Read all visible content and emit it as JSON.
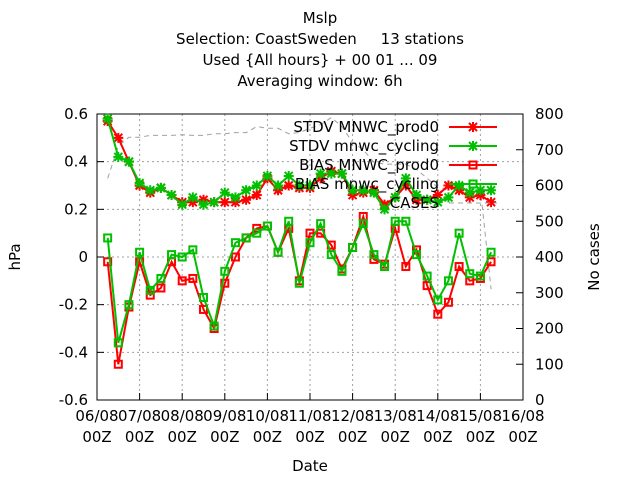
{
  "chart_data": {
    "type": "line",
    "title": [
      "Mslp",
      "Selection: CoastSweden     13 stations",
      "Used {All hours} + 00 01 ... 09",
      "Averaging window:  6h"
    ],
    "xlabel": "Date",
    "ylabel": "hPa",
    "y2label": "No cases",
    "x_ticks": [
      {
        "top": "06/08",
        "bottom": "00Z"
      },
      {
        "top": "07/08",
        "bottom": "00Z"
      },
      {
        "top": "08/08",
        "bottom": "00Z"
      },
      {
        "top": "09/08",
        "bottom": "00Z"
      },
      {
        "top": "10/08",
        "bottom": "00Z"
      },
      {
        "top": "11/08",
        "bottom": "00Z"
      },
      {
        "top": "12/08",
        "bottom": "00Z"
      },
      {
        "top": "13/08",
        "bottom": "00Z"
      },
      {
        "top": "14/08",
        "bottom": "00Z"
      },
      {
        "top": "15/08",
        "bottom": "00Z"
      },
      {
        "top": "16/08",
        "bottom": "00Z"
      }
    ],
    "xlim": [
      0,
      10
    ],
    "ylim": [
      -0.6,
      0.6
    ],
    "y_ticks": [
      "-0.6",
      "-0.4",
      "-0.2",
      "0",
      "0.2",
      "0.4",
      "0.6"
    ],
    "y2lim": [
      0,
      800
    ],
    "y2_ticks": [
      "0",
      "100",
      "200",
      "300",
      "400",
      "500",
      "600",
      "700",
      "800"
    ],
    "grid": true,
    "legend_position": "top-right",
    "x": [
      0.25,
      0.5,
      0.75,
      1.0,
      1.25,
      1.5,
      1.75,
      2.0,
      2.25,
      2.5,
      2.75,
      3.0,
      3.25,
      3.5,
      3.75,
      4.0,
      4.25,
      4.5,
      4.75,
      5.0,
      5.25,
      5.5,
      5.75,
      6.0,
      6.25,
      6.5,
      6.75,
      7.0,
      7.25,
      7.5,
      7.75,
      8.0,
      8.25,
      8.5,
      8.75,
      9.0,
      9.25
    ],
    "series": [
      {
        "name": "STDV MNWC_prod0",
        "axis": "left",
        "color": "#ff0000",
        "marker": "x",
        "values": [
          0.57,
          0.5,
          0.4,
          0.3,
          0.27,
          0.29,
          0.26,
          0.23,
          0.23,
          0.24,
          0.23,
          0.23,
          0.23,
          0.24,
          0.26,
          0.33,
          0.28,
          0.3,
          0.29,
          0.29,
          0.33,
          0.36,
          0.35,
          0.26,
          0.27,
          0.28,
          0.22,
          0.25,
          0.3,
          0.24,
          0.24,
          0.26,
          0.3,
          0.28,
          0.25,
          0.26,
          0.23
        ]
      },
      {
        "name": "STDV mnwc_cycling",
        "axis": "left",
        "color": "#00c000",
        "marker": "x",
        "values": [
          0.58,
          0.42,
          0.4,
          0.31,
          0.28,
          0.29,
          0.26,
          0.22,
          0.25,
          0.22,
          0.23,
          0.27,
          0.25,
          0.28,
          0.3,
          0.34,
          0.3,
          0.34,
          0.3,
          0.3,
          0.35,
          0.35,
          0.35,
          0.28,
          0.28,
          0.27,
          0.2,
          0.25,
          0.33,
          0.26,
          0.24,
          0.23,
          0.25,
          0.3,
          0.27,
          0.28,
          0.28
        ]
      },
      {
        "name": "BIAS MNWC_prod0",
        "axis": "left",
        "color": "#ff0000",
        "marker": "square",
        "values": [
          -0.02,
          -0.45,
          -0.21,
          -0.02,
          -0.16,
          -0.13,
          -0.02,
          -0.1,
          -0.09,
          -0.22,
          -0.3,
          -0.11,
          0.0,
          0.08,
          0.12,
          0.13,
          0.02,
          0.12,
          -0.1,
          0.1,
          0.1,
          0.05,
          -0.05,
          0.04,
          0.17,
          -0.01,
          -0.03,
          0.12,
          -0.04,
          0.03,
          -0.12,
          -0.24,
          -0.19,
          -0.04,
          -0.1,
          -0.09,
          -0.02
        ]
      },
      {
        "name": "BIAS mnwc_cycling",
        "axis": "left",
        "color": "#00c000",
        "marker": "square",
        "values": [
          0.08,
          -0.36,
          -0.2,
          0.02,
          -0.14,
          -0.09,
          0.01,
          0.0,
          0.03,
          -0.17,
          -0.29,
          -0.06,
          0.06,
          0.08,
          0.1,
          0.13,
          0.02,
          0.15,
          -0.11,
          0.06,
          0.14,
          0.01,
          -0.06,
          0.04,
          0.14,
          0.01,
          -0.04,
          0.15,
          0.15,
          0.01,
          -0.08,
          -0.18,
          -0.1,
          0.1,
          -0.07,
          -0.08,
          0.02
        ]
      },
      {
        "name": "CASES",
        "axis": "right",
        "color": "#a0a0a0",
        "dash": true,
        "values": [
          620,
          710,
          735,
          735,
          740,
          740,
          740,
          742,
          740,
          740,
          745,
          745,
          748,
          748,
          765,
          760,
          760,
          745,
          748,
          760,
          770,
          790,
          765,
          720,
          700,
          665,
          660,
          660,
          660,
          645,
          620,
          595,
          590,
          590,
          590,
          590,
          310
        ]
      }
    ]
  }
}
